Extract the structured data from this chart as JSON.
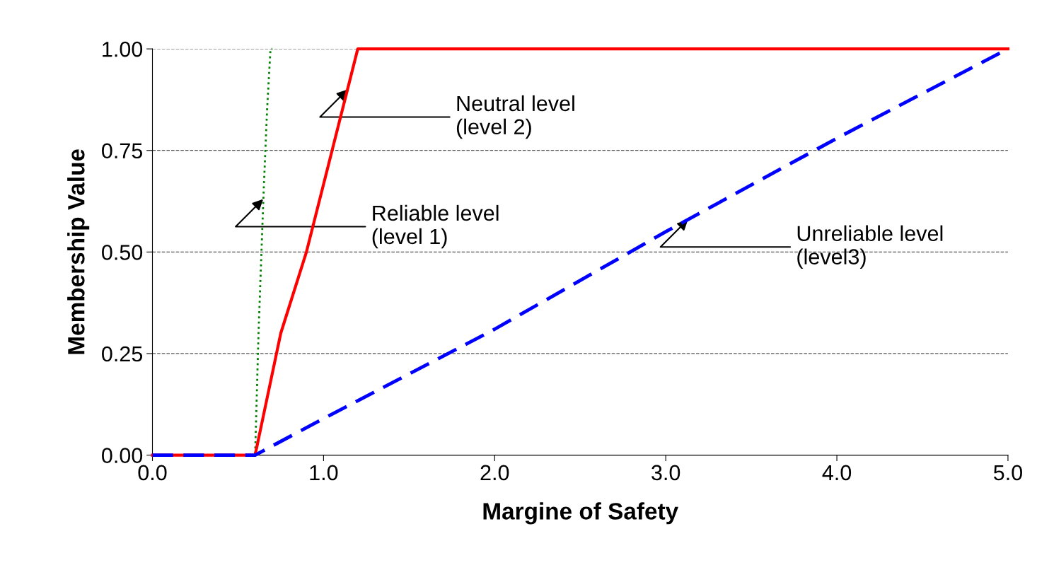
{
  "chart_data": {
    "type": "line",
    "xlabel": "Margine of Safety",
    "ylabel": "Membership Value",
    "xlim": [
      0,
      5
    ],
    "ylim": [
      0,
      1
    ],
    "xticks": [
      {
        "value": 0,
        "label": "0.0"
      },
      {
        "value": 1,
        "label": "1.0"
      },
      {
        "value": 2,
        "label": "2.0"
      },
      {
        "value": 3,
        "label": "3.0"
      },
      {
        "value": 4,
        "label": "4.0"
      },
      {
        "value": 5,
        "label": "5.0"
      }
    ],
    "yticks": [
      {
        "value": 0,
        "label": "0.00"
      },
      {
        "value": 0.25,
        "label": "0.25"
      },
      {
        "value": 0.5,
        "label": "0.50"
      },
      {
        "value": 0.75,
        "label": "0.75"
      },
      {
        "value": 1,
        "label": "1.00"
      }
    ],
    "grid": "y",
    "legend": false,
    "marker": "none",
    "series": [
      {
        "color": "#008000",
        "line_style": "dotted",
        "x": [
          0,
          0.6,
          0.62,
          0.65,
          0.67,
          0.69,
          0.7
        ],
        "values": [
          0,
          0,
          0.3,
          0.65,
          0.85,
          1.0,
          1.0
        ]
      },
      {
        "color": "#ff0000",
        "line_style": "solid",
        "x": [
          0,
          0.6,
          0.65,
          0.75,
          0.9,
          1.05,
          1.2,
          5
        ],
        "values": [
          0,
          0,
          0.1,
          0.3,
          0.5,
          0.75,
          1.0,
          1.0
        ]
      },
      {
        "color": "#0000ff",
        "line_style": "dashed",
        "x": [
          0,
          0.6,
          1.0,
          2.0,
          3.0,
          4.0,
          5.0
        ],
        "values": [
          0,
          0,
          0.09,
          0.31,
          0.55,
          0.78,
          1.0
        ]
      }
    ],
    "annotations": [
      {
        "text": "Neutral level\n(level 2)",
        "x": 1.14,
        "y": 0.9
      },
      {
        "text": "Reliable level\n(level 1)",
        "x": 0.647,
        "y": 0.63
      },
      {
        "text": "Unreliable level\n(level3)",
        "x": 3.13,
        "y": 0.58
      }
    ]
  }
}
